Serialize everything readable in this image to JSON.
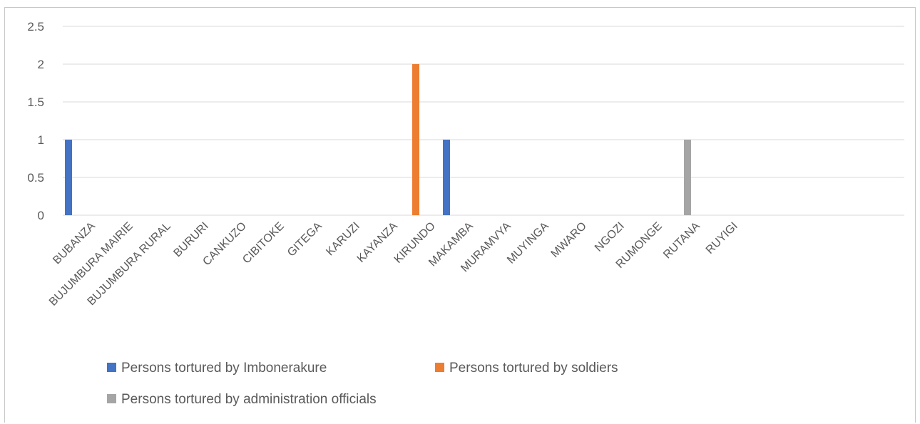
{
  "heading_fragment": "",
  "chart_data": {
    "type": "bar",
    "title": "",
    "xlabel": "",
    "ylabel": "",
    "ylim": [
      0,
      2.5
    ],
    "yticks": [
      {
        "value": 0,
        "label": "0"
      },
      {
        "value": 0.5,
        "label": "0.5"
      },
      {
        "value": 1,
        "label": "1"
      },
      {
        "value": 1.5,
        "label": "1.5"
      },
      {
        "value": 2,
        "label": "2"
      },
      {
        "value": 2.5,
        "label": "2.5"
      }
    ],
    "grid": true,
    "legend_position": "bottom",
    "categories": [
      "BUBANZA",
      "BUJUMBURA MAIRIE",
      "BUJUMBURA RURAL",
      "BURURI",
      "CANKUZO",
      "CIBITOKE",
      "GITEGA",
      "KARUZI",
      "KAYANZA",
      "KIRUNDO",
      "MAKAMBA",
      "MURAMVYA",
      "MUYINGA",
      "MWARO",
      "NGOZI",
      "RUMONGE",
      "RUTANA",
      "RUYIGI"
    ],
    "series": [
      {
        "name": "Persons tortured by Imbonerakure",
        "color": "#4472c4",
        "values": [
          1,
          0,
          0,
          0,
          0,
          0,
          0,
          0,
          0,
          0,
          1,
          0,
          0,
          0,
          0,
          0,
          0,
          0
        ]
      },
      {
        "name": "Persons tortured by soldiers",
        "color": "#ed7d31",
        "values": [
          0,
          0,
          0,
          0,
          0,
          0,
          0,
          0,
          0,
          2,
          0,
          0,
          0,
          0,
          0,
          0,
          0,
          0
        ]
      },
      {
        "name": "Persons tortured by administration officials",
        "color": "#a5a5a5",
        "values": [
          0,
          0,
          0,
          0,
          0,
          0,
          0,
          0,
          0,
          0,
          0,
          0,
          0,
          0,
          0,
          0,
          1,
          0
        ]
      }
    ]
  }
}
